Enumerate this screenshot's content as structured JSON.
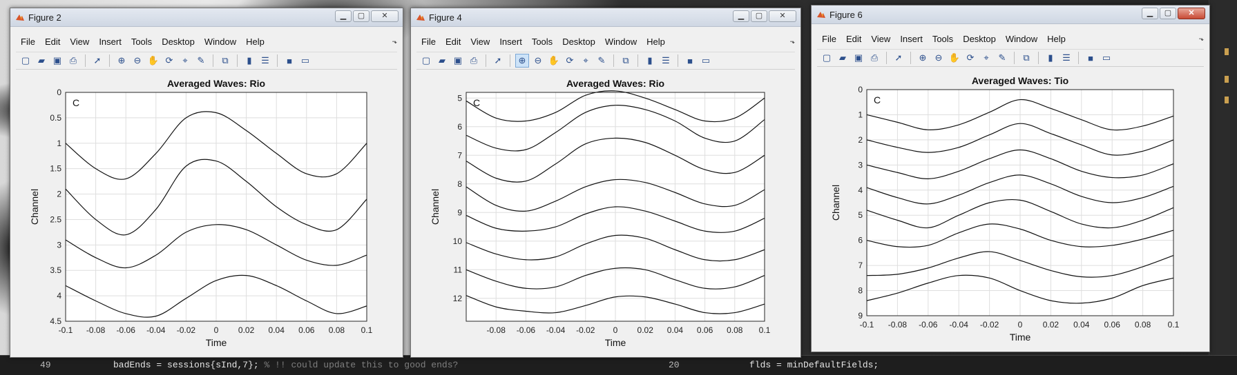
{
  "editor": {
    "line_no_1": "49",
    "line_1": "badEnds = sessions{sInd,7};",
    "line_1_comment": "% !! could update this to good ends?",
    "line_no_2": "20",
    "line_2": "flds = minDefaultFields;"
  },
  "common_menu": [
    "File",
    "Edit",
    "View",
    "Insert",
    "Tools",
    "Desktop",
    "Window",
    "Help"
  ],
  "toolbar_icons": [
    "new-figure-icon",
    "open-icon",
    "save-icon",
    "print-icon",
    "pointer-icon",
    "zoom-in-icon",
    "zoom-out-icon",
    "pan-icon",
    "rotate-icon",
    "data-cursor-icon",
    "brush-icon",
    "link-plot-icon",
    "colorbar-icon",
    "legend-icon",
    "hide-plot-tools-icon",
    "show-plot-tools-icon"
  ],
  "windows": [
    {
      "title": "Figure 2",
      "active": false,
      "chart_data": {
        "type": "line",
        "title": "Averaged Waves: Rio",
        "xlabel": "Time",
        "ylabel": "Channel",
        "panel_letter": "C",
        "xlim": [
          -0.1,
          0.1
        ],
        "ylim": [
          0,
          4.5
        ],
        "y_reversed": true,
        "grid": true,
        "x_ticks": [
          "-0.1",
          "-0.08",
          "-0.06",
          "-0.04",
          "-0.02",
          "0",
          "0.02",
          "0.04",
          "0.06",
          "0.08",
          "0.1"
        ],
        "y_ticks": [
          "0",
          "0.5",
          "1",
          "1.5",
          "2",
          "2.5",
          "3",
          "3.5",
          "4",
          "4.5"
        ],
        "series": [
          {
            "x": [
              -0.1,
              -0.08,
              -0.06,
              -0.04,
              -0.02,
              0,
              0.02,
              0.04,
              0.06,
              0.08,
              0.1
            ],
            "values": [
              1.0,
              1.5,
              1.7,
              1.2,
              0.5,
              0.4,
              0.75,
              1.2,
              1.6,
              1.6,
              1.0
            ]
          },
          {
            "x": [
              -0.1,
              -0.08,
              -0.06,
              -0.04,
              -0.02,
              0,
              0.02,
              0.04,
              0.06,
              0.08,
              0.1
            ],
            "values": [
              1.9,
              2.5,
              2.8,
              2.3,
              1.45,
              1.35,
              1.75,
              2.25,
              2.6,
              2.7,
              2.1
            ]
          },
          {
            "x": [
              -0.1,
              -0.08,
              -0.06,
              -0.04,
              -0.02,
              0,
              0.02,
              0.04,
              0.06,
              0.08,
              0.1
            ],
            "values": [
              2.9,
              3.25,
              3.45,
              3.2,
              2.75,
              2.6,
              2.7,
              3.0,
              3.3,
              3.4,
              3.2
            ]
          },
          {
            "x": [
              -0.1,
              -0.08,
              -0.06,
              -0.04,
              -0.02,
              0,
              0.02,
              0.04,
              0.06,
              0.08,
              0.1
            ],
            "values": [
              3.8,
              4.1,
              4.35,
              4.4,
              4.05,
              3.7,
              3.6,
              3.8,
              4.1,
              4.35,
              4.2
            ]
          }
        ]
      }
    },
    {
      "title": "Figure 4",
      "active": false,
      "chart_data": {
        "type": "line",
        "title": "Averaged Waves: Rio",
        "xlabel": "Time",
        "ylabel": "Channel",
        "panel_letter": "C",
        "xlim": [
          -0.1,
          0.1
        ],
        "ylim": [
          4.8,
          12.8
        ],
        "y_reversed": true,
        "grid": true,
        "x_ticks": [
          "-0.08",
          "-0.06",
          "-0.04",
          "-0.02",
          "0",
          "0.02",
          "0.04",
          "0.06",
          "0.08",
          "0.1"
        ],
        "y_ticks": [
          "5",
          "6",
          "7",
          "8",
          "9",
          "10",
          "11",
          "12"
        ],
        "series": [
          {
            "x": [
              -0.1,
              -0.08,
              -0.06,
              -0.04,
              -0.02,
              0,
              0.02,
              0.04,
              0.06,
              0.08,
              0.1
            ],
            "values": [
              5.1,
              5.7,
              5.8,
              5.5,
              4.9,
              4.75,
              5.0,
              5.4,
              5.8,
              5.7,
              5.0
            ]
          },
          {
            "x": [
              -0.1,
              -0.08,
              -0.06,
              -0.04,
              -0.02,
              0,
              0.02,
              0.04,
              0.06,
              0.08,
              0.1
            ],
            "values": [
              6.3,
              6.75,
              6.8,
              6.2,
              5.5,
              5.25,
              5.4,
              5.8,
              6.4,
              6.5,
              5.75
            ]
          },
          {
            "x": [
              -0.1,
              -0.08,
              -0.06,
              -0.04,
              -0.02,
              0,
              0.02,
              0.04,
              0.06,
              0.08,
              0.1
            ],
            "values": [
              7.2,
              7.8,
              7.9,
              7.3,
              6.6,
              6.4,
              6.55,
              7.0,
              7.5,
              7.6,
              7.0
            ]
          },
          {
            "x": [
              -0.1,
              -0.08,
              -0.06,
              -0.04,
              -0.02,
              0,
              0.02,
              0.04,
              0.06,
              0.08,
              0.1
            ],
            "values": [
              8.1,
              8.75,
              8.95,
              8.6,
              8.1,
              7.85,
              7.95,
              8.3,
              8.7,
              8.75,
              8.2
            ]
          },
          {
            "x": [
              -0.1,
              -0.08,
              -0.06,
              -0.04,
              -0.02,
              0,
              0.02,
              0.04,
              0.06,
              0.08,
              0.1
            ],
            "values": [
              9.1,
              9.55,
              9.65,
              9.5,
              9.05,
              8.8,
              8.95,
              9.3,
              9.65,
              9.65,
              9.2
            ]
          },
          {
            "x": [
              -0.1,
              -0.08,
              -0.06,
              -0.04,
              -0.02,
              0,
              0.02,
              0.04,
              0.06,
              0.08,
              0.1
            ],
            "values": [
              10.05,
              10.45,
              10.65,
              10.55,
              10.1,
              9.8,
              9.9,
              10.3,
              10.65,
              10.65,
              10.3
            ]
          },
          {
            "x": [
              -0.1,
              -0.08,
              -0.06,
              -0.04,
              -0.02,
              0,
              0.02,
              0.04,
              0.06,
              0.08,
              0.1
            ],
            "values": [
              11.0,
              11.4,
              11.65,
              11.6,
              11.2,
              10.95,
              11.0,
              11.35,
              11.65,
              11.6,
              11.2
            ]
          },
          {
            "x": [
              -0.1,
              -0.08,
              -0.06,
              -0.04,
              -0.02,
              0,
              0.02,
              0.04,
              0.06,
              0.08,
              0.1
            ],
            "values": [
              11.9,
              12.3,
              12.45,
              12.5,
              12.25,
              11.95,
              11.95,
              12.2,
              12.5,
              12.5,
              12.2
            ]
          }
        ]
      }
    },
    {
      "title": "Figure 6",
      "active": true,
      "chart_data": {
        "type": "line",
        "title": "Averaged Waves: Tio",
        "xlabel": "Time",
        "ylabel": "Channel",
        "panel_letter": "C",
        "xlim": [
          -0.1,
          0.1
        ],
        "ylim": [
          0,
          9
        ],
        "y_reversed": true,
        "grid": true,
        "x_ticks": [
          "-0.1",
          "-0.08",
          "-0.06",
          "-0.04",
          "-0.02",
          "0",
          "0.02",
          "0.04",
          "0.06",
          "0.08",
          "0.1"
        ],
        "y_ticks": [
          "0",
          "1",
          "2",
          "3",
          "4",
          "5",
          "6",
          "7",
          "8",
          "9"
        ],
        "series": [
          {
            "x": [
              -0.1,
              -0.08,
              -0.06,
              -0.04,
              -0.02,
              0,
              0.02,
              0.04,
              0.06,
              0.08,
              0.1
            ],
            "values": [
              1.0,
              1.3,
              1.6,
              1.4,
              0.9,
              0.4,
              0.75,
              1.2,
              1.6,
              1.45,
              1.05
            ]
          },
          {
            "x": [
              -0.1,
              -0.08,
              -0.06,
              -0.04,
              -0.02,
              0,
              0.02,
              0.04,
              0.06,
              0.08,
              0.1
            ],
            "values": [
              2.0,
              2.3,
              2.5,
              2.3,
              1.8,
              1.35,
              1.75,
              2.2,
              2.6,
              2.45,
              2.0
            ]
          },
          {
            "x": [
              -0.1,
              -0.08,
              -0.06,
              -0.04,
              -0.02,
              0,
              0.02,
              0.04,
              0.06,
              0.08,
              0.1
            ],
            "values": [
              3.0,
              3.3,
              3.55,
              3.25,
              2.75,
              2.4,
              2.75,
              3.25,
              3.5,
              3.4,
              2.95
            ]
          },
          {
            "x": [
              -0.1,
              -0.08,
              -0.06,
              -0.04,
              -0.02,
              0,
              0.02,
              0.04,
              0.06,
              0.08,
              0.1
            ],
            "values": [
              3.9,
              4.3,
              4.55,
              4.2,
              3.7,
              3.4,
              3.75,
              4.25,
              4.5,
              4.3,
              3.85
            ]
          },
          {
            "x": [
              -0.1,
              -0.08,
              -0.06,
              -0.04,
              -0.02,
              0,
              0.02,
              0.04,
              0.06,
              0.08,
              0.1
            ],
            "values": [
              4.8,
              5.2,
              5.5,
              5.0,
              4.5,
              4.4,
              4.85,
              5.35,
              5.5,
              5.2,
              4.7
            ]
          },
          {
            "x": [
              -0.1,
              -0.08,
              -0.06,
              -0.04,
              -0.02,
              0,
              0.02,
              0.04,
              0.06,
              0.08,
              0.1
            ],
            "values": [
              6.0,
              6.25,
              6.2,
              5.7,
              5.35,
              5.55,
              6.0,
              6.25,
              6.2,
              5.95,
              5.6
            ]
          },
          {
            "x": [
              -0.1,
              -0.08,
              -0.06,
              -0.04,
              -0.02,
              0,
              0.02,
              0.04,
              0.06,
              0.08,
              0.1
            ],
            "values": [
              7.4,
              7.35,
              7.1,
              6.7,
              6.45,
              6.8,
              7.2,
              7.45,
              7.4,
              7.05,
              6.6
            ]
          },
          {
            "x": [
              -0.1,
              -0.08,
              -0.06,
              -0.04,
              -0.02,
              0,
              0.02,
              0.04,
              0.06,
              0.08,
              0.1
            ],
            "values": [
              8.4,
              8.1,
              7.7,
              7.4,
              7.5,
              8.0,
              8.4,
              8.5,
              8.3,
              7.8,
              7.5
            ]
          }
        ]
      }
    }
  ]
}
